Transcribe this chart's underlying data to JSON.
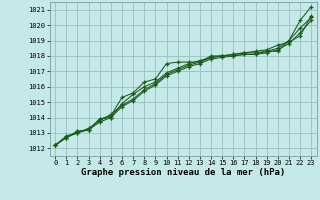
{
  "title": "Graphe pression niveau de la mer (hPa)",
  "bg_color": "#c5e8e8",
  "grid_color": "#9bbfbf",
  "line_color": "#1a5c1a",
  "xlim": [
    -0.5,
    23.5
  ],
  "ylim": [
    1011.5,
    1021.5
  ],
  "xticks": [
    0,
    1,
    2,
    3,
    4,
    5,
    6,
    7,
    8,
    9,
    10,
    11,
    12,
    13,
    14,
    15,
    16,
    17,
    18,
    19,
    20,
    21,
    22,
    23
  ],
  "yticks": [
    1012,
    1013,
    1014,
    1015,
    1016,
    1017,
    1018,
    1019,
    1020,
    1021
  ],
  "series": [
    [
      1012.2,
      1012.7,
      1013.1,
      1013.2,
      1013.9,
      1014.1,
      1015.3,
      1015.6,
      1016.3,
      1016.5,
      1017.5,
      1017.6,
      1017.6,
      1017.6,
      1018.0,
      1018.0,
      1018.0,
      1018.1,
      1018.1,
      1018.3,
      1018.3,
      1019.0,
      1020.3,
      1021.2
    ],
    [
      1012.2,
      1012.8,
      1013.0,
      1013.3,
      1013.8,
      1014.2,
      1014.8,
      1015.2,
      1015.8,
      1016.2,
      1016.8,
      1017.1,
      1017.4,
      1017.6,
      1017.9,
      1018.0,
      1018.1,
      1018.2,
      1018.2,
      1018.3,
      1018.5,
      1019.0,
      1019.8,
      1020.5
    ],
    [
      1012.2,
      1012.7,
      1013.0,
      1013.2,
      1013.7,
      1014.0,
      1014.7,
      1015.1,
      1015.7,
      1016.1,
      1016.7,
      1017.0,
      1017.3,
      1017.5,
      1017.8,
      1017.9,
      1018.0,
      1018.1,
      1018.1,
      1018.2,
      1018.4,
      1018.8,
      1019.5,
      1020.3
    ],
    [
      1012.2,
      1012.7,
      1013.1,
      1013.2,
      1013.9,
      1014.0,
      1014.9,
      1015.5,
      1016.0,
      1016.3,
      1016.9,
      1017.2,
      1017.5,
      1017.7,
      1017.9,
      1018.0,
      1018.1,
      1018.2,
      1018.3,
      1018.4,
      1018.7,
      1018.9,
      1019.3,
      1020.6
    ]
  ],
  "marker_series": [
    0,
    1,
    2,
    3
  ],
  "title_fontsize": 6.5,
  "tick_fontsize": 5.0
}
